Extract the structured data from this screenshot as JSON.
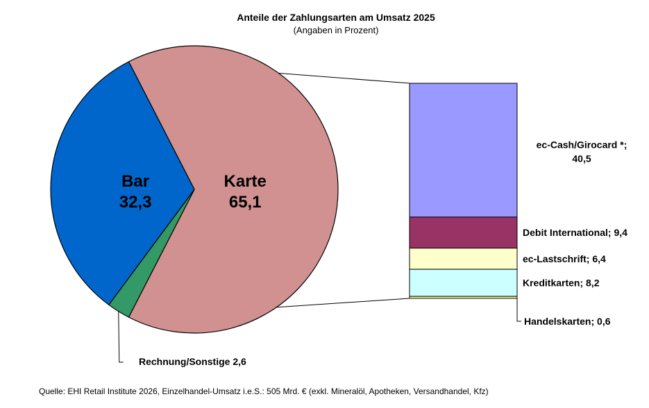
{
  "chart_data": {
    "type": "pie",
    "title": "Anteile der Zahlungsarten am Umsatz 2025",
    "subtitle": "(Angaben in Prozent)",
    "slices": [
      {
        "label": "Karte",
        "value": 65.1,
        "value_text": "65,1",
        "color": "#D19191"
      },
      {
        "label": "Rechnung/Sonstige",
        "value": 2.6,
        "value_text": "2,6",
        "color": "#339966"
      },
      {
        "label": "Bar",
        "value": 32.3,
        "value_text": "32,3",
        "color": "#0066CC"
      }
    ],
    "breakdown": {
      "of": "Karte",
      "segments": [
        {
          "label": "ec-Cash/Girocard *;",
          "value": 40.5,
          "value_text": "40,5",
          "color": "#9999FF"
        },
        {
          "label": "Debit International; 9,4",
          "value": 9.4,
          "color": "#993366"
        },
        {
          "label": "ec-Lastschrift; 6,4",
          "value": 6.4,
          "color": "#FFFFCC"
        },
        {
          "label": "Kreditkarten; 8,2",
          "value": 8.2,
          "color": "#CCFFFF"
        },
        {
          "label": "Handelskarten; 0,6",
          "value": 0.6,
          "color": "#FFFF99"
        }
      ]
    },
    "source": "Quelle: EHI Retail Institute 2026, Einzelhandel-Umsatz i.e.S.: 505 Mrd. € (exkl. Mineralöl, Apotheken, Versandhandel, Kfz)"
  }
}
